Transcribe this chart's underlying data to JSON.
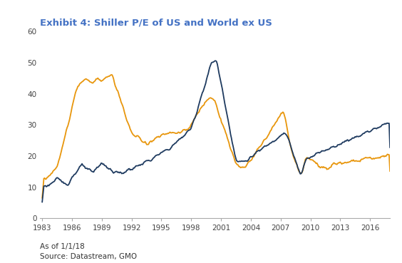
{
  "title": "Exhibit 4: Shiller P/E of US and World ex US",
  "footnote1": "As of 1/1/18",
  "footnote2": "Source: Datastream, GMO",
  "us_color": "#1e3a5f",
  "world_color": "#e8960c",
  "ylim": [
    0,
    60
  ],
  "yticks": [
    0,
    10,
    20,
    30,
    40,
    50,
    60
  ],
  "xticks": [
    1983,
    1986,
    1989,
    1992,
    1995,
    1998,
    2001,
    2004,
    2007,
    2010,
    2013,
    2016
  ],
  "xlim_start": 1983,
  "xlim_end": 2018,
  "title_color": "#4472c4",
  "title_fontsize": 9.5,
  "footnote_fontsize": 7.5,
  "linewidth": 1.3,
  "tick_color": "#888888",
  "spine_color": "#aaaaaa"
}
